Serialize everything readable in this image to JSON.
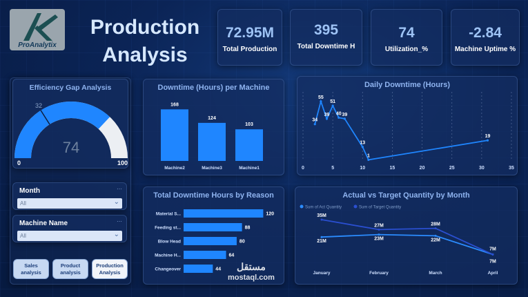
{
  "brand": {
    "logo_text": "ProAnalytix"
  },
  "page": {
    "title_line1": "Production",
    "title_line2": "Analysis"
  },
  "kpis": [
    {
      "value": "72.95M",
      "label": "Total Production"
    },
    {
      "value": "395",
      "label": "Total Downtime H"
    },
    {
      "value": "74",
      "label": "Utilization_%"
    },
    {
      "value": "-2.84",
      "label": "Machine Uptime %"
    }
  ],
  "gauge": {
    "title": "Efficiency Gap Analysis",
    "value": 74,
    "value_label": "74",
    "target": 32,
    "target_label": "32",
    "min": 0,
    "min_label": "0",
    "max": 100,
    "max_label": "100",
    "colors": {
      "fill": "#1f86ff",
      "rest": "#eceff3",
      "target_line": "#0d1f3f"
    }
  },
  "slicers": [
    {
      "label": "Month",
      "value": "All"
    },
    {
      "label": "Machine Name",
      "value": "All"
    }
  ],
  "nav": [
    {
      "label_line1": "Sales",
      "label_line2": "analysis",
      "active": false
    },
    {
      "label_line1": "Product",
      "label_line2": "analysis",
      "active": false
    },
    {
      "label_line1": "Production",
      "label_line2": "Analysis",
      "active": true
    }
  ],
  "watermark": {
    "line1": "مستقل",
    "line2": "mostaql.com"
  },
  "chart_data": [
    {
      "type": "bar",
      "title": "Downtime (Hours) per Machine",
      "categories": [
        "Machine2",
        "Machine3",
        "Machine1"
      ],
      "values": [
        168,
        124,
        103
      ],
      "value_labels": [
        "168",
        "124",
        "103"
      ],
      "ylim": [
        0,
        180
      ],
      "color": "#1f86ff"
    },
    {
      "type": "line",
      "title": "Daily Downtime (Hours)",
      "x": [
        2,
        3,
        4,
        5,
        6,
        7,
        10,
        11,
        31
      ],
      "y": [
        34,
        55,
        39,
        51,
        40,
        39,
        13,
        1,
        19
      ],
      "point_labels": [
        "34",
        "55",
        "39",
        "51",
        "40",
        "39",
        "13",
        "1",
        "19"
      ],
      "xlim": [
        0,
        35
      ],
      "x_ticks": [
        "0",
        "5",
        "10",
        "15",
        "20",
        "25",
        "30",
        "35"
      ],
      "x_tick_values": [
        0,
        5,
        10,
        15,
        20,
        25,
        30,
        35
      ],
      "ylim": [
        0,
        60
      ],
      "grid": "vertical",
      "color": "#1f86ff"
    },
    {
      "type": "bar",
      "orientation": "horizontal",
      "title": "Total Downtime Hours by Reason",
      "categories": [
        "Material S...",
        "Feeding st...",
        "Blow Head",
        "Machine H...",
        "Changeover"
      ],
      "values": [
        120,
        88,
        80,
        64,
        44
      ],
      "value_labels": [
        "120",
        "88",
        "80",
        "64",
        "44"
      ],
      "xlim": [
        0,
        130
      ],
      "color": "#1f86ff"
    },
    {
      "type": "line",
      "title": "Actual vs Target Quantity by Month",
      "categories": [
        "January",
        "February",
        "March",
        "April"
      ],
      "legend_position": "top-left",
      "ylim": [
        0,
        40
      ],
      "series": [
        {
          "name": "Sum of Act Quantity",
          "values": [
            21,
            23,
            22,
            7
          ],
          "labels": [
            "21M",
            "23M",
            "22M",
            "7M"
          ],
          "color": "#2b8cff"
        },
        {
          "name": "Sum of Target Quantity",
          "values": [
            35,
            27,
            28,
            7
          ],
          "labels": [
            "35M",
            "27M",
            "28M",
            "7M"
          ],
          "color": "#2a4fd0"
        }
      ]
    }
  ]
}
